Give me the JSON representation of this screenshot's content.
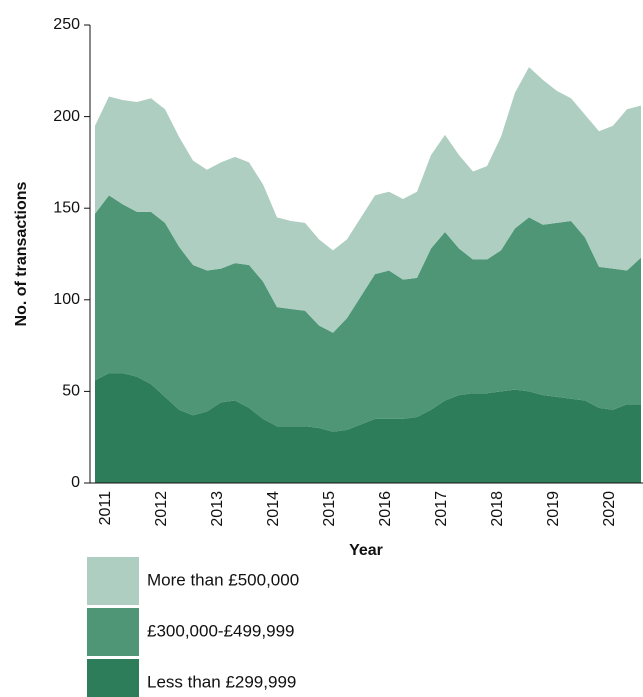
{
  "chart_data": {
    "type": "stacked_area",
    "xlabel": "Year",
    "ylabel": "No. of  transactions",
    "categories": [
      null,
      "2011",
      null,
      null,
      null,
      "2012",
      null,
      null,
      null,
      "2013",
      null,
      null,
      null,
      "2014",
      null,
      null,
      null,
      "2015",
      null,
      null,
      null,
      "2016",
      null,
      null,
      null,
      "2017",
      null,
      null,
      null,
      "2018",
      null,
      null,
      null,
      "2019",
      null,
      null,
      null,
      "2020",
      null,
      null
    ],
    "series": [
      {
        "name": "Less than £299,999",
        "color": "#2e7d5a",
        "values": [
          56,
          60,
          60,
          58,
          54,
          47,
          40,
          37,
          39,
          44,
          45,
          41,
          35,
          31,
          31,
          31,
          30,
          28,
          29,
          32,
          35,
          35,
          35,
          36,
          40,
          45,
          48,
          49,
          49,
          50,
          51,
          50,
          48,
          47,
          46,
          45,
          41,
          40,
          43,
          43
        ]
      },
      {
        "name": "£300,000-£499,999",
        "color": "#4e9676",
        "values": [
          91,
          97,
          92,
          90,
          94,
          95,
          89,
          82,
          77,
          73,
          75,
          78,
          75,
          65,
          64,
          63,
          56,
          54,
          61,
          70,
          79,
          81,
          76,
          76,
          88,
          92,
          80,
          73,
          73,
          77,
          88,
          95,
          93,
          95,
          97,
          89,
          77,
          77,
          73,
          80
        ]
      },
      {
        "name": "More than £500,000",
        "color": "#adcec0",
        "values": [
          48,
          54,
          57,
          60,
          62,
          62,
          60,
          57,
          55,
          58,
          58,
          56,
          53,
          49,
          48,
          48,
          47,
          45,
          43,
          43,
          43,
          43,
          44,
          47,
          51,
          53,
          51,
          48,
          51,
          62,
          74,
          82,
          79,
          72,
          67,
          67,
          74,
          78,
          88,
          83
        ]
      }
    ],
    "ylim": [
      0,
      250
    ],
    "yticks": [
      0,
      50,
      100,
      150,
      200,
      250
    ]
  }
}
